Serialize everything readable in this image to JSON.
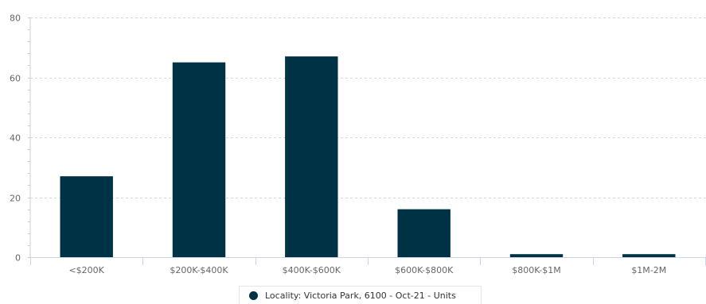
{
  "chart_data": {
    "type": "bar",
    "categories": [
      "<$200K",
      "$200K-$400K",
      "$400K-$600K",
      "$600K-$800K",
      "$800K-$1M",
      "$1M-2M"
    ],
    "series": [
      {
        "name": "Locality: Victoria Park, 6100 - Oct-21 - Units",
        "values": [
          27,
          65,
          67,
          16,
          1,
          1
        ],
        "color": "#003245"
      }
    ],
    "ylim": [
      0,
      80
    ],
    "yticks": [
      "0",
      "20",
      "40",
      "60",
      "80"
    ],
    "grid": true,
    "legend_position": "bottom-center"
  }
}
